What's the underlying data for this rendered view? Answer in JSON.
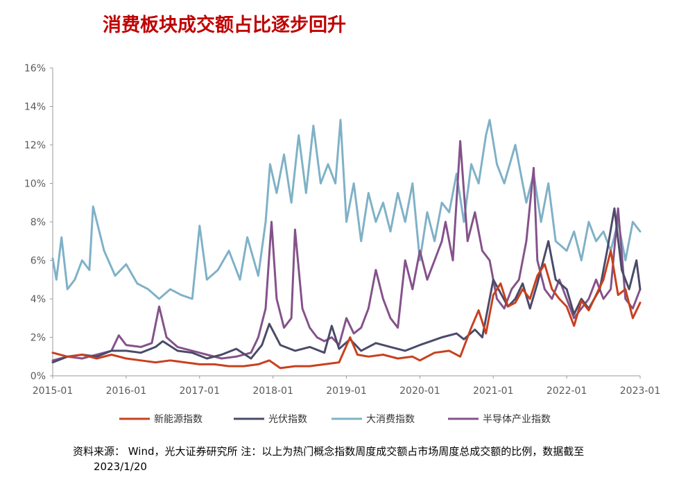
{
  "title": "消费板块成交额占比逐步回升",
  "source_line": "资料来源： Wind，光大证券研究所 注：以上为热门概念指数周度成交额占市场周度总成交额的比例，数据截至",
  "source_date": "2023/1/20",
  "chart_data": {
    "type": "line",
    "ylim": [
      0,
      16
    ],
    "yticks": [
      "0%",
      "2%",
      "4%",
      "6%",
      "8%",
      "10%",
      "12%",
      "14%",
      "16%"
    ],
    "xlim": [
      2015.0,
      2023.0
    ],
    "xticks": [
      "2015-01",
      "2016-01",
      "2017-01",
      "2018-01",
      "2019-01",
      "2020-01",
      "2021-01",
      "2022-01",
      "2023-01"
    ],
    "series": [
      {
        "name": "新能源指数",
        "color": "#c8401e",
        "x": [
          2015.0,
          2015.2,
          2015.4,
          2015.6,
          2015.8,
          2016.0,
          2016.2,
          2016.4,
          2016.6,
          2016.8,
          2017.0,
          2017.2,
          2017.4,
          2017.6,
          2017.8,
          2017.95,
          2018.1,
          2018.3,
          2018.5,
          2018.7,
          2018.9,
          2019.05,
          2019.15,
          2019.3,
          2019.5,
          2019.7,
          2019.9,
          2020.0,
          2020.2,
          2020.4,
          2020.55,
          2020.7,
          2020.8,
          2020.9,
          2021.0,
          2021.1,
          2021.2,
          2021.3,
          2021.4,
          2021.5,
          2021.6,
          2021.7,
          2021.8,
          2021.9,
          2022.0,
          2022.1,
          2022.2,
          2022.3,
          2022.4,
          2022.5,
          2022.6,
          2022.7,
          2022.8,
          2022.9,
          2023.0
        ],
        "values": [
          1.2,
          1.0,
          1.1,
          0.9,
          1.1,
          0.9,
          0.8,
          0.7,
          0.8,
          0.7,
          0.6,
          0.6,
          0.5,
          0.5,
          0.6,
          0.8,
          0.4,
          0.5,
          0.5,
          0.6,
          0.7,
          2.0,
          1.1,
          1.0,
          1.1,
          0.9,
          1.0,
          0.8,
          1.2,
          1.3,
          1.0,
          2.5,
          3.4,
          2.2,
          4.2,
          4.8,
          3.6,
          3.8,
          4.5,
          4.0,
          5.2,
          5.8,
          4.5,
          4.0,
          3.6,
          2.6,
          3.9,
          3.4,
          4.2,
          5.0,
          6.5,
          4.2,
          4.5,
          3.0,
          3.8
        ]
      },
      {
        "name": "光伏指数",
        "color": "#4a4a6a",
        "x": [
          2015.0,
          2015.2,
          2015.4,
          2015.6,
          2015.8,
          2016.0,
          2016.2,
          2016.4,
          2016.5,
          2016.7,
          2016.9,
          2017.1,
          2017.3,
          2017.5,
          2017.7,
          2017.85,
          2017.95,
          2018.1,
          2018.3,
          2018.5,
          2018.7,
          2018.8,
          2018.9,
          2019.05,
          2019.2,
          2019.4,
          2019.6,
          2019.8,
          2020.0,
          2020.15,
          2020.3,
          2020.5,
          2020.6,
          2020.75,
          2020.85,
          2021.0,
          2021.1,
          2021.2,
          2021.3,
          2021.4,
          2021.5,
          2021.6,
          2021.75,
          2021.85,
          2022.0,
          2022.1,
          2022.2,
          2022.3,
          2022.45,
          2022.55,
          2022.65,
          2022.75,
          2022.85,
          2022.95,
          2023.0
        ],
        "values": [
          0.7,
          1.0,
          1.1,
          1.0,
          1.3,
          1.3,
          1.2,
          1.5,
          1.8,
          1.3,
          1.2,
          0.9,
          1.1,
          1.4,
          0.9,
          1.6,
          2.7,
          1.6,
          1.3,
          1.5,
          1.2,
          2.6,
          1.4,
          1.9,
          1.3,
          1.7,
          1.5,
          1.3,
          1.6,
          1.8,
          2.0,
          2.2,
          1.9,
          2.4,
          2.0,
          5.0,
          4.3,
          3.6,
          4.0,
          4.8,
          3.5,
          4.8,
          7.0,
          5.0,
          4.5,
          3.2,
          4.0,
          3.5,
          4.5,
          6.5,
          8.7,
          5.5,
          4.5,
          6.0,
          4.5
        ]
      },
      {
        "name": "大消费指数",
        "color": "#7fb1c7",
        "x": [
          2015.0,
          2015.05,
          2015.12,
          2015.2,
          2015.3,
          2015.4,
          2015.5,
          2015.55,
          2015.7,
          2015.85,
          2016.0,
          2016.15,
          2016.3,
          2016.45,
          2016.6,
          2016.75,
          2016.9,
          2017.0,
          2017.1,
          2017.25,
          2017.4,
          2017.55,
          2017.65,
          2017.8,
          2017.9,
          2017.96,
          2018.05,
          2018.15,
          2018.25,
          2018.35,
          2018.45,
          2018.55,
          2018.65,
          2018.75,
          2018.85,
          2018.92,
          2019.0,
          2019.1,
          2019.2,
          2019.3,
          2019.4,
          2019.5,
          2019.6,
          2019.7,
          2019.8,
          2019.9,
          2020.0,
          2020.1,
          2020.2,
          2020.3,
          2020.4,
          2020.5,
          2020.6,
          2020.7,
          2020.8,
          2020.9,
          2020.95,
          2021.05,
          2021.15,
          2021.3,
          2021.45,
          2021.55,
          2021.65,
          2021.75,
          2021.85,
          2022.0,
          2022.1,
          2022.2,
          2022.3,
          2022.4,
          2022.5,
          2022.6,
          2022.7,
          2022.8,
          2022.9,
          2023.0
        ],
        "values": [
          6.1,
          5.0,
          7.2,
          4.5,
          5.0,
          6.0,
          5.5,
          8.8,
          6.5,
          5.2,
          5.8,
          4.8,
          4.5,
          4.0,
          4.5,
          4.2,
          4.0,
          7.8,
          5.0,
          5.5,
          6.5,
          5.0,
          7.2,
          5.2,
          8.0,
          11.0,
          9.5,
          11.5,
          9.0,
          12.5,
          9.5,
          13.0,
          10.0,
          11.0,
          10.0,
          13.3,
          8.0,
          10.0,
          7.0,
          9.5,
          8.0,
          9.0,
          7.5,
          9.5,
          8.0,
          10.0,
          6.0,
          8.5,
          7.0,
          9.0,
          8.5,
          10.5,
          8.0,
          11.0,
          10.0,
          12.5,
          13.3,
          11.0,
          10.0,
          12.0,
          9.0,
          10.5,
          8.0,
          10.0,
          7.0,
          6.5,
          7.5,
          6.0,
          8.0,
          7.0,
          7.5,
          6.5,
          8.0,
          6.0,
          8.0,
          7.5
        ]
      },
      {
        "name": "半导体产业指数",
        "color": "#84528a",
        "x": [
          2015.0,
          2015.2,
          2015.4,
          2015.6,
          2015.8,
          2015.9,
          2016.0,
          2016.2,
          2016.35,
          2016.45,
          2016.55,
          2016.7,
          2016.9,
          2017.1,
          2017.3,
          2017.5,
          2017.7,
          2017.8,
          2017.9,
          2017.98,
          2018.05,
          2018.15,
          2018.25,
          2018.3,
          2018.4,
          2018.5,
          2018.6,
          2018.7,
          2018.8,
          2018.9,
          2019.0,
          2019.1,
          2019.2,
          2019.3,
          2019.4,
          2019.5,
          2019.6,
          2019.7,
          2019.8,
          2019.9,
          2020.0,
          2020.1,
          2020.2,
          2020.3,
          2020.35,
          2020.45,
          2020.55,
          2020.65,
          2020.75,
          2020.85,
          2020.95,
          2021.05,
          2021.15,
          2021.25,
          2021.35,
          2021.45,
          2021.55,
          2021.6,
          2021.7,
          2021.8,
          2021.9,
          2022.0,
          2022.1,
          2022.2,
          2022.3,
          2022.4,
          2022.5,
          2022.6,
          2022.7,
          2022.8,
          2022.9,
          2023.0
        ],
        "values": [
          0.8,
          1.0,
          0.9,
          1.1,
          1.3,
          2.1,
          1.6,
          1.5,
          1.7,
          3.6,
          2.0,
          1.5,
          1.3,
          1.1,
          0.9,
          1.0,
          1.2,
          2.0,
          3.5,
          8.0,
          4.0,
          2.5,
          3.0,
          7.6,
          3.5,
          2.5,
          2.0,
          1.8,
          2.0,
          1.6,
          3.0,
          2.2,
          2.5,
          3.5,
          5.5,
          4.0,
          3.0,
          2.5,
          6.0,
          4.5,
          6.5,
          5.0,
          6.0,
          7.0,
          8.0,
          6.0,
          12.2,
          7.0,
          8.5,
          6.5,
          6.0,
          4.0,
          3.5,
          4.5,
          5.0,
          7.0,
          10.8,
          6.0,
          4.5,
          4.0,
          5.0,
          4.0,
          3.0,
          3.5,
          4.0,
          5.0,
          4.0,
          4.5,
          8.7,
          4.0,
          3.5,
          4.5
        ]
      }
    ]
  }
}
